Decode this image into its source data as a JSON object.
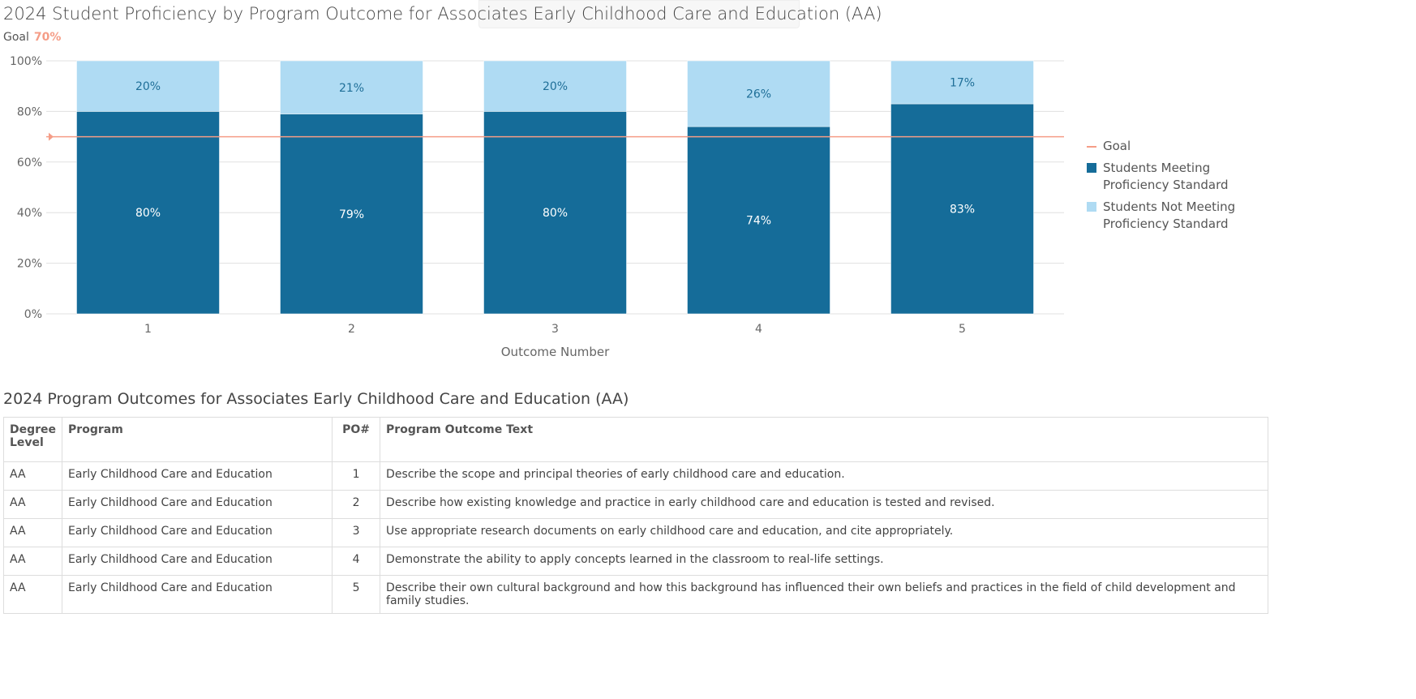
{
  "title": "2024 Student Proficiency by Program Outcome for Associates Early Childhood Care and Education (AA)",
  "goal_label": "Goal",
  "goal_value": "70%",
  "chart_data": {
    "type": "bar",
    "stacked": true,
    "title": "2024 Student Proficiency by Program Outcome for Associates Early Childhood Care and Education (AA)",
    "xlabel": "Outcome Number",
    "ylabel": "",
    "ylim": [
      0,
      100
    ],
    "yticks": [
      "0%",
      "20%",
      "40%",
      "60%",
      "80%",
      "100%"
    ],
    "categories": [
      "1",
      "2",
      "3",
      "4",
      "5"
    ],
    "grid": true,
    "legend": "right",
    "goal": 70,
    "series": [
      {
        "name": "Students Meeting Proficiency Standard",
        "values": [
          80,
          79,
          80,
          74,
          83
        ],
        "labels": [
          "80%",
          "79%",
          "80%",
          "74%",
          "83%"
        ],
        "color": "#156c99"
      },
      {
        "name": "Students Not Meeting Proficiency Standard",
        "values": [
          20,
          21,
          20,
          26,
          17
        ],
        "labels": [
          "20%",
          "21%",
          "20%",
          "26%",
          "17%"
        ],
        "color": "#afdbf3"
      }
    ],
    "goal_series": {
      "name": "Goal",
      "color": "#f59d87"
    }
  },
  "table": {
    "title": "2024 Program Outcomes for Associates Early Childhood Care and Education (AA)",
    "headers": [
      "Degree Level",
      "Program",
      "PO#",
      "Program Outcome Text"
    ],
    "rows": [
      [
        "AA",
        "Early Childhood Care and Education",
        "1",
        "Describe the scope and principal theories of early childhood care and education."
      ],
      [
        "AA",
        "Early Childhood Care and Education",
        "2",
        "Describe how existing knowledge and practice in early childhood care and education is tested and revised."
      ],
      [
        "AA",
        "Early Childhood Care and Education",
        "3",
        "Use appropriate research documents on early childhood care and education, and cite appropriately."
      ],
      [
        "AA",
        "Early Childhood Care and Education",
        "4",
        "Demonstrate the ability to apply concepts learned in the classroom to real-life settings."
      ],
      [
        "AA",
        "Early Childhood Care and Education",
        "5",
        "Describe their own cultural background and how this background has influenced their own beliefs and practices in the field of child development and family studies."
      ]
    ]
  }
}
